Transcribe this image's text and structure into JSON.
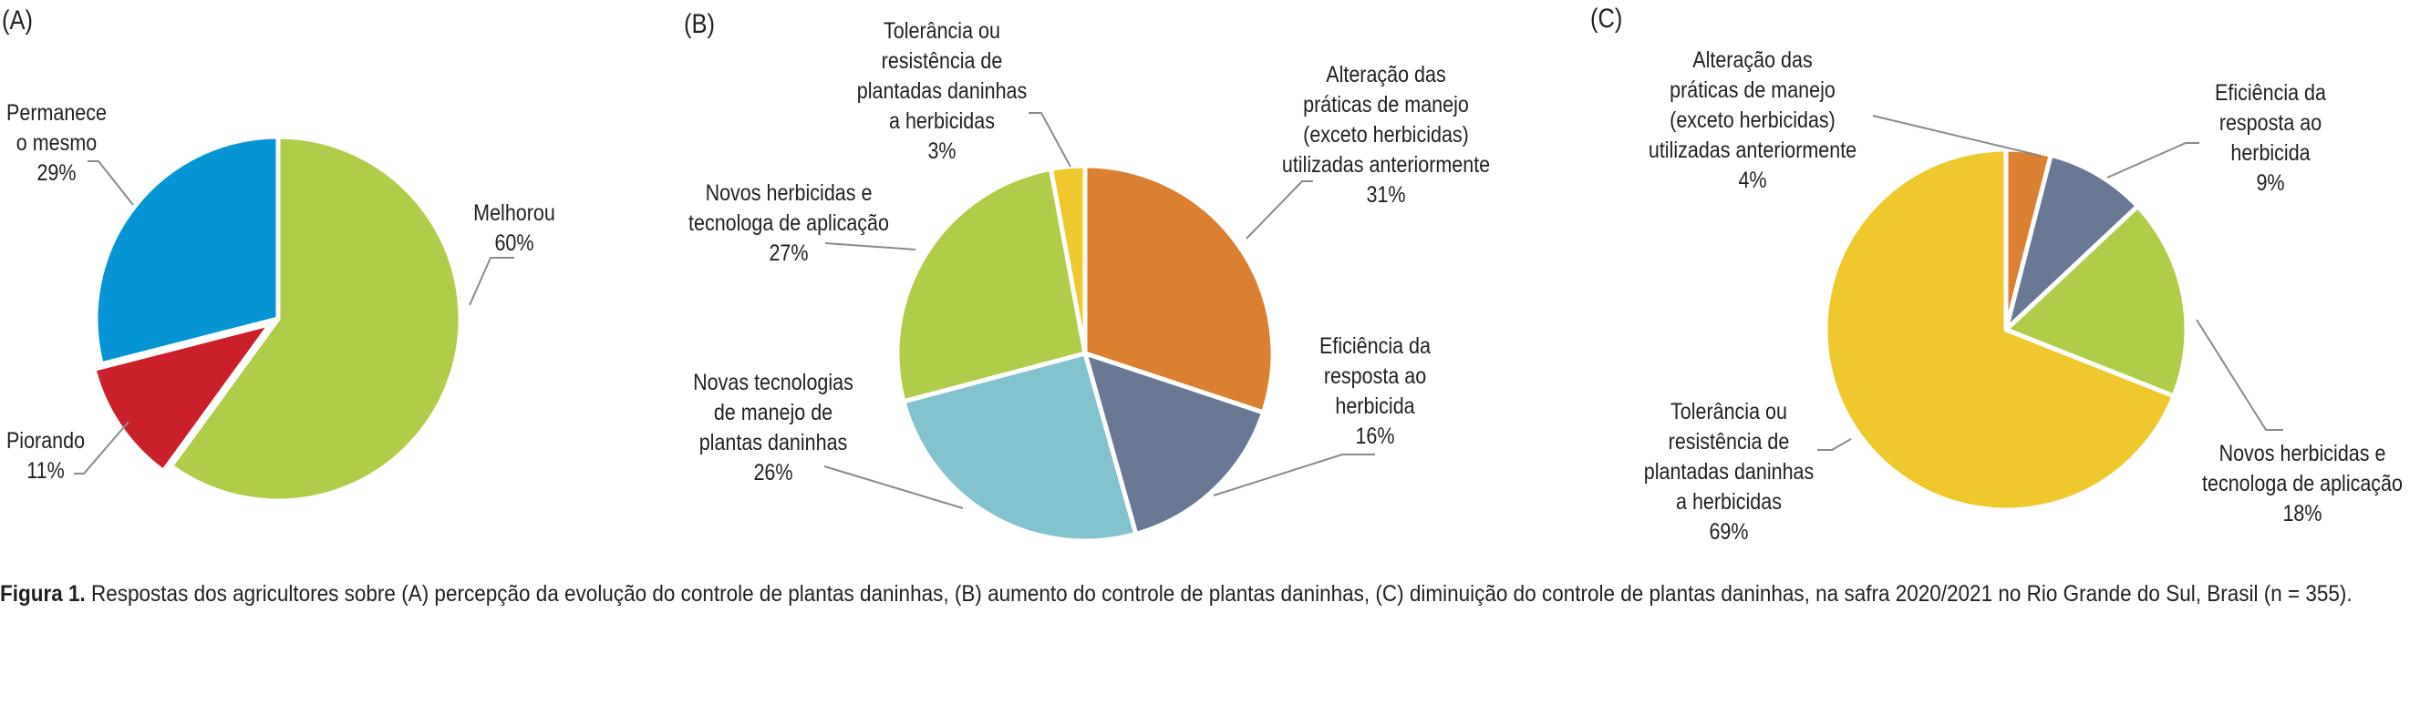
{
  "chart_data": [
    {
      "type": "pie",
      "panel": "(A)",
      "slices": [
        {
          "label": "Melhorou\n60%",
          "name": "Melhorou",
          "value": 60,
          "color": "#b0cd49"
        },
        {
          "label": "Piorando\n11%",
          "name": "Piorando",
          "value": 11,
          "color": "#c9202a"
        },
        {
          "label": "Permanece\no mesmo\n29%",
          "name": "Permanece o mesmo",
          "value": 29,
          "color": "#0595d5"
        }
      ]
    },
    {
      "type": "pie",
      "panel": "(B)",
      "slices": [
        {
          "label": "Alteração das\npráticas de manejo\n(exceto herbicidas)\nutilizadas anteriormente\n31%",
          "name": "Alteração das práticas de manejo (exceto herbicidas) utilizadas anteriormente",
          "value": 31,
          "color": "#db8030"
        },
        {
          "label": "Eficiência da\nresposta ao\nherbicida\n16%",
          "name": "Eficiência da resposta ao herbicida",
          "value": 16,
          "color": "#687895"
        },
        {
          "label": "Novas tecnologias\nde manejo de\nplantas daninhas\n26%",
          "name": "Novas tecnologias de manejo de plantas daninhas",
          "value": 26,
          "color": "#82c3cf"
        },
        {
          "label": "Novos herbicidas e\ntecnologa de aplicação\n27%",
          "name": "Novos herbicidas e tecnologa de aplicação",
          "value": 27,
          "color": "#b0cd49"
        },
        {
          "label": "Tolerância ou\nresistência de\nplantadas daninhas\na herbicidas\n3%",
          "name": "Tolerância ou resistência de plantadas daninhas a herbicidas",
          "value": 3,
          "color": "#efc82e"
        }
      ]
    },
    {
      "type": "pie",
      "panel": "(C)",
      "slices": [
        {
          "label": "Alteração das\npráticas de manejo\n(exceto herbicidas)\nutilizadas anteriormente\n4%",
          "name": "Alteração das práticas de manejo (exceto herbicidas) utilizadas anteriormente",
          "value": 4,
          "color": "#db8030"
        },
        {
          "label": "Eficiência da\nresposta ao\nherbicida\n9%",
          "name": "Eficiência da resposta ao herbicida",
          "value": 9,
          "color": "#687895"
        },
        {
          "label": "Novos herbicidas e\ntecnologa de aplicação\n18%",
          "name": "Novos herbicidas e tecnologa de aplicação",
          "value": 18,
          "color": "#b0cd49"
        },
        {
          "label": "Tolerância ou\nresistência de\nplantadas daninhas\na herbicidas\n69%",
          "name": "Tolerância ou resistência de plantadas daninhas a herbicidas",
          "value": 69,
          "color": "#efc82e"
        }
      ]
    }
  ],
  "caption": {
    "bold": "Figura 1.",
    "text": " Respostas dos agricultores sobre (A) percepção da evolução do controle de plantas daninhas, (B) aumento do controle de plantas daninhas, (C) diminuição do controle de plantas daninhas, na safra 2020/2021 no Rio Grande do Sul, Brasil (n = 355)."
  }
}
